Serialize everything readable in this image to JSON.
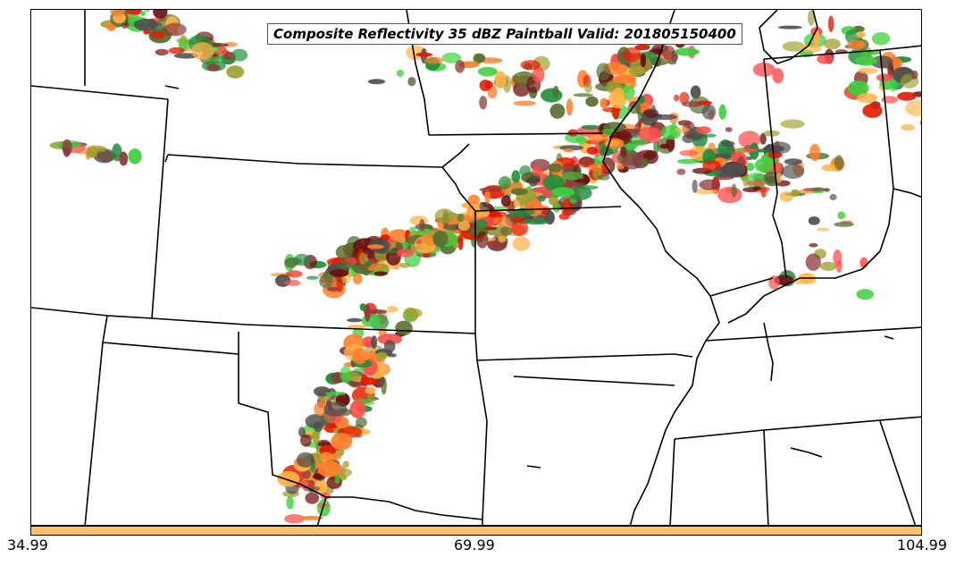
{
  "map": {
    "title": "Composite Reflectivity 35 dBZ Paintball Valid: 201805150400",
    "threshold_dbz": 35,
    "valid_time": "201805150400"
  },
  "colorbar": {
    "color": "#ffc366",
    "ticks": [
      "34.99",
      "69.99",
      "104.99"
    ]
  },
  "member_colors": [
    "#ff4d4d",
    "#e51a00",
    "#ff7f2a",
    "#ffb347",
    "#a0a030",
    "#556b2f",
    "#3ecf3e",
    "#1e8c3a",
    "#8b3a3a",
    "#6a0f0f",
    "#4d4d4d"
  ]
}
